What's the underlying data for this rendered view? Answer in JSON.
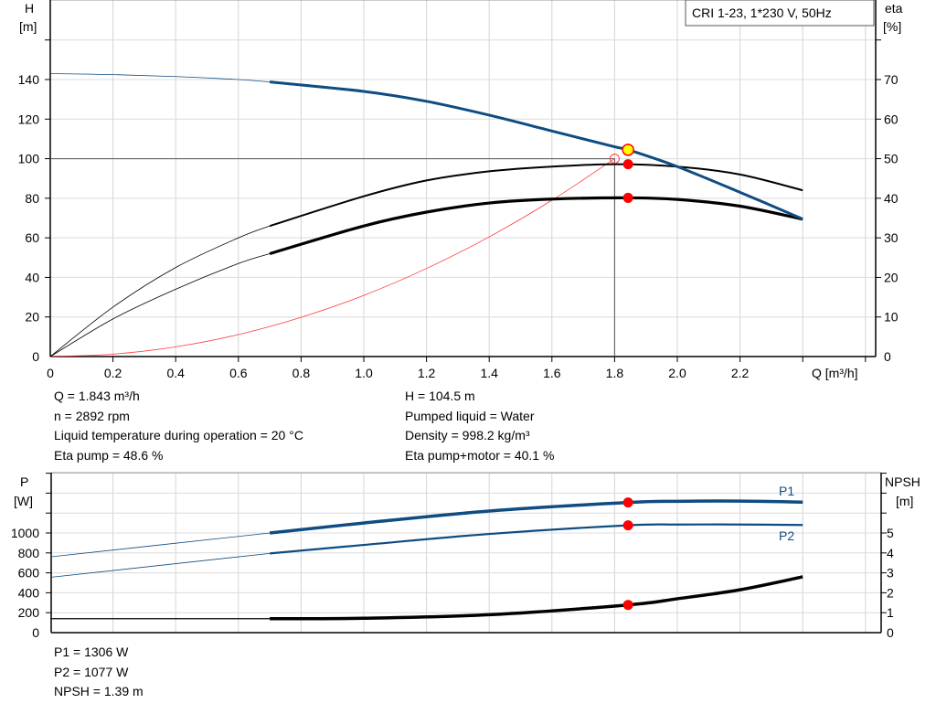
{
  "chart_data": [
    {
      "type": "line",
      "title": "CRI 1-23, 1*230 V, 50Hz",
      "xlabel": "Q [m³/h]",
      "ylabel": "H\n[m]",
      "y2label": "eta\n[%]",
      "ylabel_lines": [
        "H",
        "[m]"
      ],
      "y2label_lines": [
        "eta",
        "[%]"
      ],
      "xlim": [
        0,
        2.6
      ],
      "ylim": [
        0,
        160
      ],
      "y2lim": [
        0,
        80
      ],
      "xticks": [
        "0",
        "0.2",
        "0.4",
        "0.6",
        "0.8",
        "1.0",
        "1.2",
        "1.4",
        "1.6",
        "1.8",
        "2.0",
        "2.2"
      ],
      "yticks": [
        "0",
        "20",
        "40",
        "60",
        "80",
        "100",
        "120",
        "140"
      ],
      "y2ticks": [
        "0",
        "10",
        "20",
        "30",
        "40",
        "50",
        "60",
        "70"
      ],
      "grid": true,
      "colors": {
        "head": "#0f4c81",
        "eta": "#000000",
        "system": "#ff3b3b",
        "point": "#ff0000",
        "duty": "#ffff00"
      },
      "series": [
        {
          "key": "head",
          "axis": "left",
          "x": [
            0,
            0.2,
            0.4,
            0.6,
            0.7,
            1.0,
            1.2,
            1.4,
            1.6,
            1.8,
            1.843,
            2.0,
            2.2,
            2.4
          ],
          "y": [
            143,
            142.5,
            141.5,
            140,
            138.8,
            134,
            129,
            122,
            114,
            106,
            104.5,
            96,
            83,
            69.5
          ]
        },
        {
          "key": "eta_pump",
          "axis": "right",
          "x": [
            0,
            0.2,
            0.4,
            0.6,
            0.7,
            1.0,
            1.2,
            1.4,
            1.6,
            1.8,
            2.0,
            2.2,
            2.4
          ],
          "y": [
            0,
            12.5,
            22.5,
            30,
            33,
            40.5,
            44.5,
            46.8,
            48,
            48.6,
            48,
            46,
            42
          ]
        },
        {
          "key": "eta_pump_motor",
          "axis": "right",
          "x": [
            0,
            0.2,
            0.4,
            0.6,
            0.7,
            1.0,
            1.2,
            1.4,
            1.6,
            1.843,
            2.0,
            2.2,
            2.4
          ],
          "y": [
            0,
            9.5,
            17,
            23.5,
            26,
            33,
            36.5,
            38.8,
            39.8,
            40.1,
            39.7,
            38,
            34.7
          ]
        },
        {
          "key": "system",
          "axis": "left",
          "x": [
            0,
            0.2,
            0.4,
            0.6,
            0.8,
            1.0,
            1.2,
            1.4,
            1.6,
            1.8
          ],
          "y": [
            0,
            1.2,
            4.9,
            11.1,
            19.8,
            30.9,
            44.5,
            60.5,
            79,
            100
          ]
        }
      ],
      "duty_point": {
        "q": 1.843,
        "h": 104.5,
        "eta_pump": 48.6,
        "eta_pump_motor": 40.1
      },
      "requested_point": {
        "q": 1.8,
        "h": 100
      }
    },
    {
      "type": "line",
      "ylabel_lines": [
        "P",
        "[W]"
      ],
      "y2label_lines": [
        "NPSH",
        "[m]"
      ],
      "xlim": [
        0,
        2.6
      ],
      "ylim": [
        0,
        1600
      ],
      "y2lim": [
        0,
        8
      ],
      "yticks": [
        "0",
        "200",
        "400",
        "600",
        "800",
        "1000"
      ],
      "y2ticks": [
        "0",
        "1",
        "2",
        "3",
        "4",
        "5"
      ],
      "grid": true,
      "series": [
        {
          "name": "P1",
          "axis": "left",
          "x": [
            0,
            0.7,
            1.0,
            1.4,
            1.843,
            2.0,
            2.2,
            2.4
          ],
          "y": [
            760,
            1000,
            1100,
            1220,
            1306,
            1318,
            1320,
            1310
          ]
        },
        {
          "name": "P2",
          "axis": "left",
          "x": [
            0,
            0.7,
            1.0,
            1.4,
            1.843,
            2.0,
            2.2,
            2.4
          ],
          "y": [
            555,
            795,
            880,
            990,
            1077,
            1085,
            1085,
            1080
          ]
        },
        {
          "key": "npsh",
          "axis": "right",
          "x": [
            0,
            0.7,
            1.0,
            1.4,
            1.843,
            2.0,
            2.2,
            2.4
          ],
          "y": [
            0.7,
            0.7,
            0.72,
            0.9,
            1.39,
            1.7,
            2.15,
            2.8
          ]
        }
      ],
      "duty_point": {
        "q": 1.843,
        "p1": 1306,
        "p2": 1077,
        "npsh": 1.39
      }
    }
  ],
  "info": {
    "left": [
      "Q = 1.843 m³/h",
      "n = 2892 rpm",
      "Liquid temperature during operation = 20 °C",
      "Eta pump = 48.6 %"
    ],
    "right": [
      "H = 104.5 m",
      "Pumped liquid = Water",
      "Density = 998.2 kg/m³",
      "Eta pump+motor = 40.1 %"
    ],
    "bottom": [
      "P1 = 1306 W",
      "P2 = 1077 W",
      "NPSH = 1.39 m"
    ]
  }
}
